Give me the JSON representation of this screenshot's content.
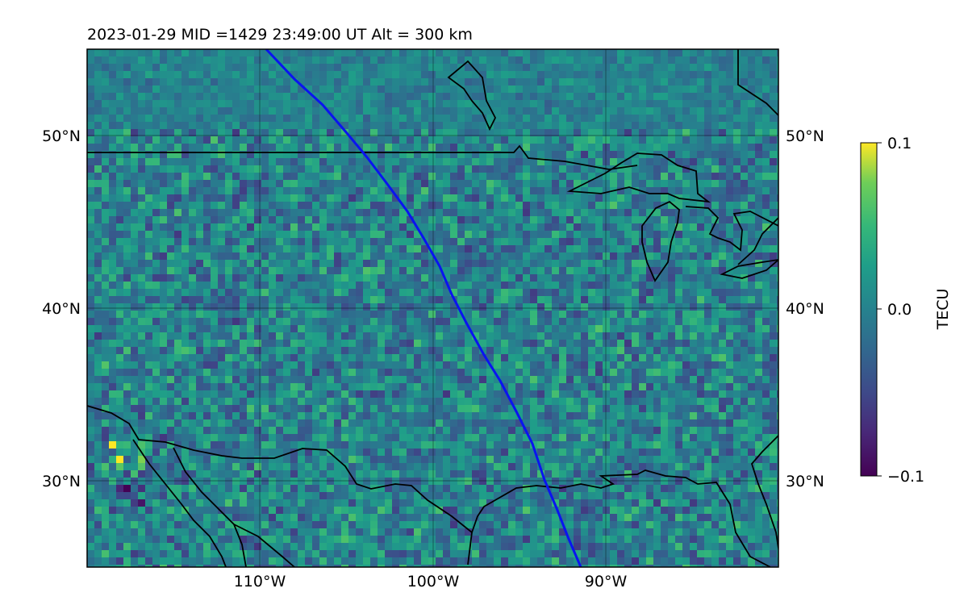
{
  "header": {
    "title": "2023-01-29  MID =1429    23:49:00  UT  Alt = 300 km"
  },
  "map": {
    "x_labels": [
      "110°W",
      "100°W",
      "90°W"
    ],
    "y_labels_left": [
      "50°N",
      "40°N",
      "30°N"
    ],
    "y_labels_right": [
      "50°N",
      "40°N",
      "30°N"
    ],
    "track_color": "#0a14f0",
    "coast_color": "#000000"
  },
  "colorbar": {
    "label": "TECU",
    "ticks": [
      "0.1",
      "0.0",
      "−0.1"
    ],
    "colormap": "viridis"
  }
}
